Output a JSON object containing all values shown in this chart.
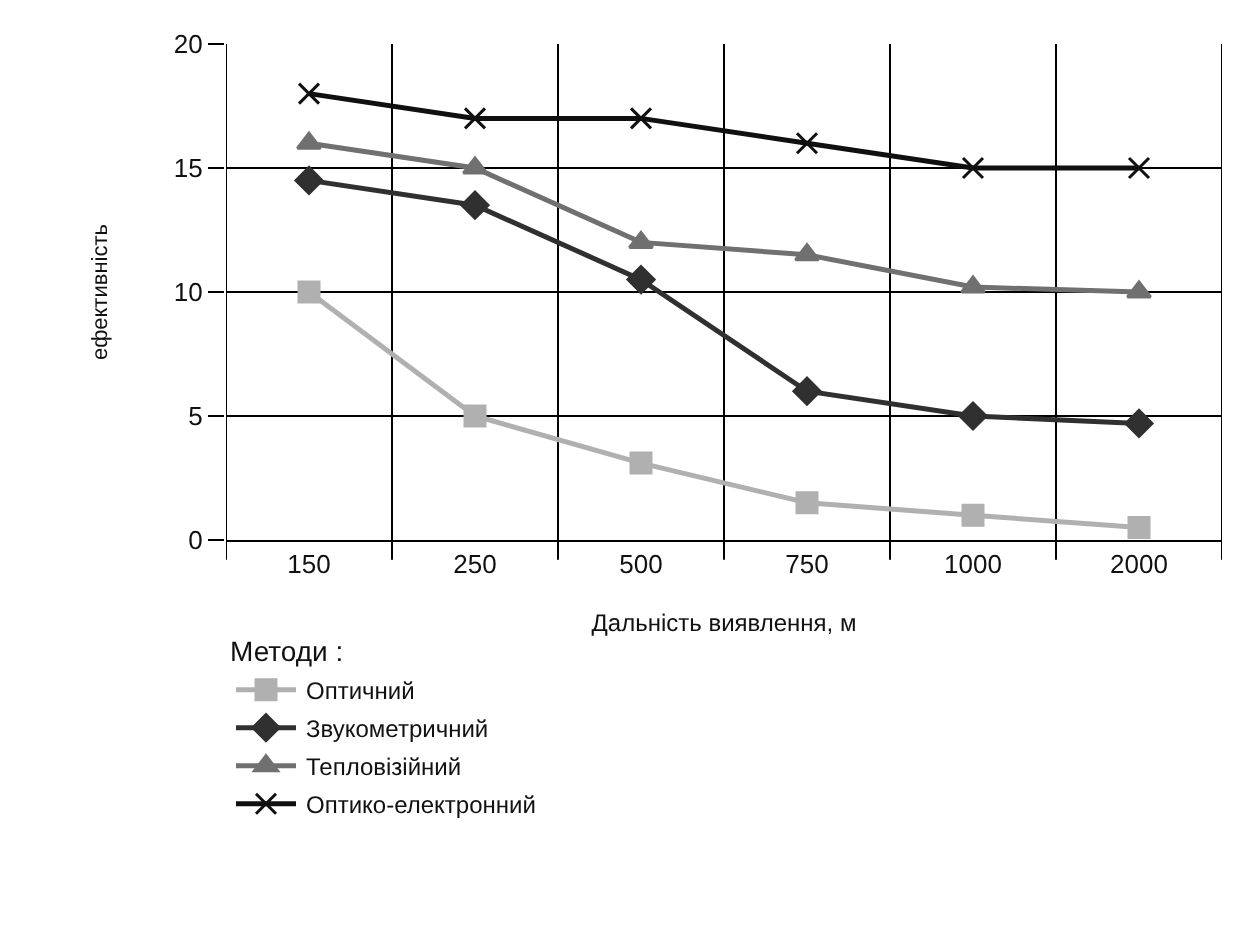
{
  "chart_data": {
    "type": "line",
    "xlabel": "Дальність виявлення, м",
    "ylabel": "ефективність",
    "legend_title": "Методи :",
    "categories": [
      "150",
      "250",
      "500",
      "750",
      "1000",
      "2000"
    ],
    "series": [
      {
        "name": "Оптичний",
        "color": "#b0b0b0",
        "marker": "square",
        "values": [
          10,
          5,
          3.1,
          1.5,
          1,
          0.5
        ]
      },
      {
        "name": "Звукометричний",
        "color": "#303030",
        "marker": "diamond",
        "values": [
          14.5,
          13.5,
          10.5,
          6,
          5,
          4.7
        ]
      },
      {
        "name": "Тепловізійний",
        "color": "#707070",
        "marker": "triangle",
        "values": [
          16,
          15,
          12,
          11.5,
          10.2,
          10
        ]
      },
      {
        "name": "Оптико-електронний",
        "color": "#101010",
        "marker": "cross",
        "values": [
          18,
          17,
          17,
          16,
          15,
          15
        ]
      }
    ],
    "ylim": [
      0,
      20
    ],
    "yticks": [
      0,
      5,
      10,
      15,
      20
    ],
    "grid": true,
    "legend": "bottom",
    "line_style": "solid"
  }
}
